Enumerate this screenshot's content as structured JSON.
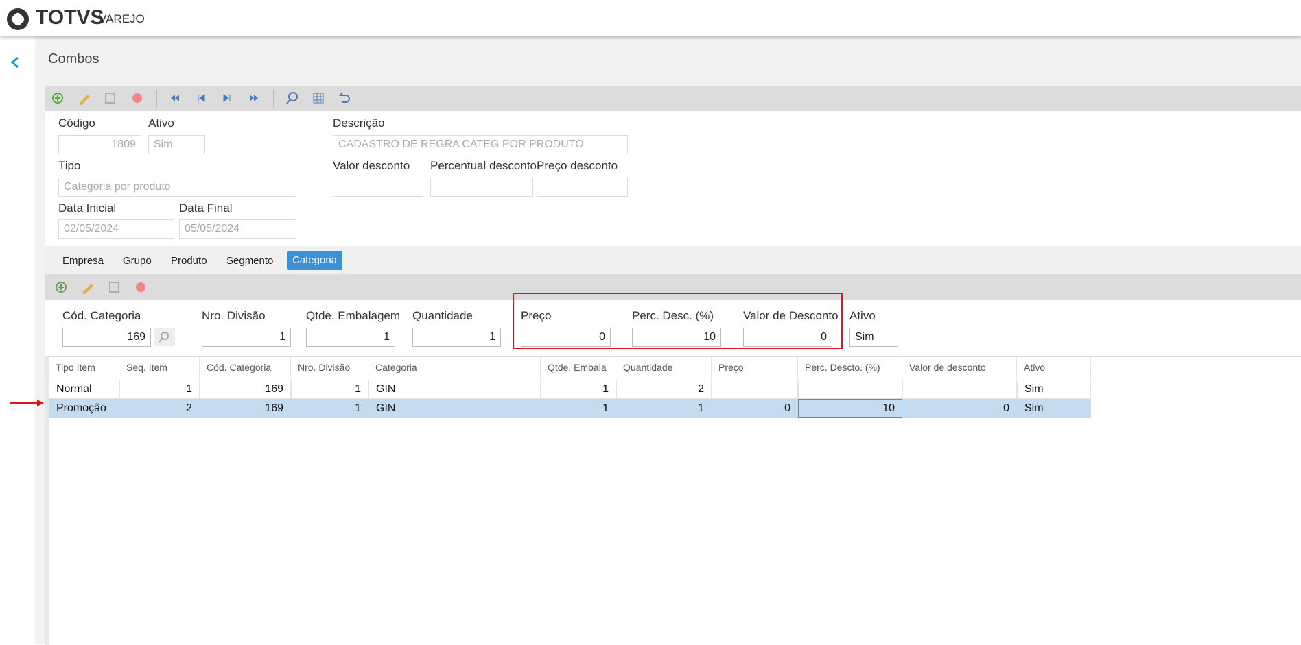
{
  "header": {
    "logo": "TOTVS",
    "product": "VAREJO"
  },
  "page": {
    "title": "Combos"
  },
  "form": {
    "codigo": {
      "label": "Código",
      "value": "1809"
    },
    "ativo": {
      "label": "Ativo",
      "value": "Sim"
    },
    "descricao": {
      "label": "Descrição",
      "value": "CADASTRO DE REGRA CATEG POR PRODUTO"
    },
    "tipo": {
      "label": "Tipo",
      "value": "Categoria por produto"
    },
    "valor_desconto": {
      "label": "Valor desconto"
    },
    "percentual_desconto": {
      "label": "Percentual desconto"
    },
    "preco_desconto": {
      "label": "Preço desconto"
    },
    "data_inicial": {
      "label": "Data Inicial",
      "value": "02/05/2024"
    },
    "data_final": {
      "label": "Data Final",
      "value": "05/05/2024"
    }
  },
  "tabs": [
    "Empresa",
    "Grupo",
    "Produto",
    "Segmento",
    "Categoria"
  ],
  "detail": [
    {
      "label": "Cód. Categoria",
      "value": "169"
    },
    {
      "label": "Nro. Divisão",
      "value": "1"
    },
    {
      "label": "Qtde. Embalagem",
      "value": "1"
    },
    {
      "label": "Quantidade",
      "value": "1"
    },
    {
      "label": "Preço",
      "value": "0"
    },
    {
      "label": "Perc. Desc. (%)",
      "value": "10"
    },
    {
      "label": "Valor de Desconto",
      "value": "0"
    },
    {
      "label": "Ativo",
      "value": "Sim"
    }
  ],
  "table": {
    "columns": [
      "Tipo Item",
      "Seq. Item",
      "Cód. Categoria",
      "Nro. Divisão",
      "Categoria",
      "Qtde. Embala",
      "Quantidade",
      "Preço",
      "Perc. Descto. (%)",
      "Valor de desconto",
      "Ativo"
    ],
    "rows": [
      [
        "Normal",
        "1",
        "169",
        "1",
        "GIN",
        "1",
        "2",
        null,
        null,
        null,
        "Sim"
      ],
      [
        "Promoção",
        "2",
        "169",
        "1",
        "GIN",
        "1",
        "1",
        "0",
        "10",
        "0",
        "Sim"
      ]
    ]
  }
}
